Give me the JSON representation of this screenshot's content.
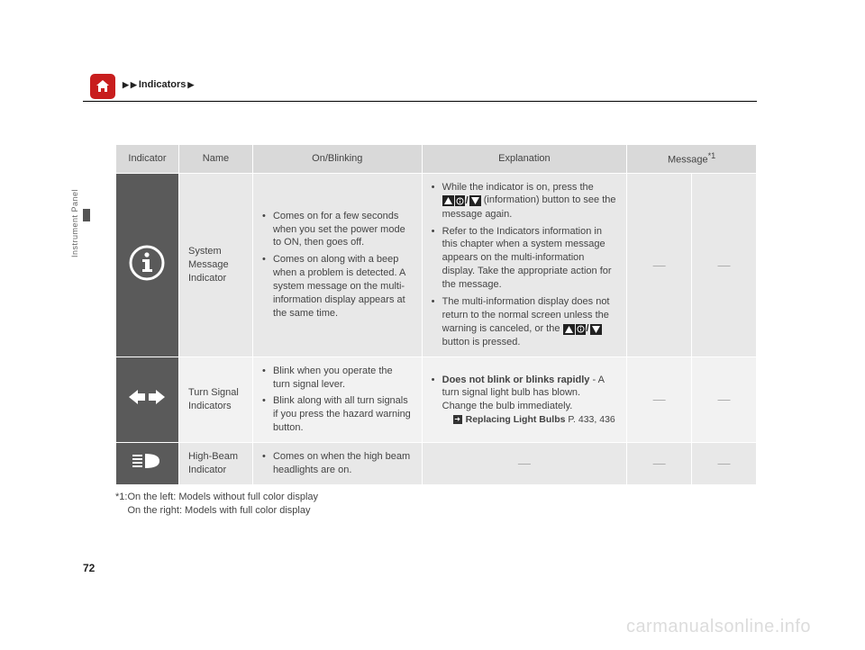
{
  "breadcrumb": {
    "item1": "Indicators"
  },
  "sideLabel": "Instrument Panel",
  "pageNumber": "72",
  "watermark": "carmanualsonline.info",
  "headers": {
    "indicator": "Indicator",
    "name": "Name",
    "on": "On/Blinking",
    "explanation": "Explanation",
    "message": "Message",
    "messageSup": "*1"
  },
  "rows": [
    {
      "name": "System Message Indicator",
      "on": [
        "Comes on for a few seconds when you set the power mode to ON, then goes off.",
        "Comes on along with a beep when a problem is detected. A system message on the multi-information display appears at the same time."
      ],
      "exp": [
        "While the indicator is on, press the __BTN__ (information) button to see the message again.",
        "Refer to the Indicators information in this chapter when a system message appears on the multi-information display. Take the appropriate action for the message.",
        "The multi-information display does not return to the normal screen unless the warning is canceled, or the __BTN__ button is pressed."
      ],
      "msg1": "—",
      "msg2": "—"
    },
    {
      "name": "Turn Signal Indicators",
      "on": [
        "Blink when you operate the turn signal lever.",
        "Blink along with all turn signals if you press the hazard warning button."
      ],
      "expBold": "Does not blink or blinks rapidly",
      "expRest": " - A turn signal light bulb has blown. Change the bulb immediately.",
      "xrefLabel": "Replacing Light Bulbs",
      "xrefPages": "P. 433, 436",
      "msg1": "—",
      "msg2": "—"
    },
    {
      "name": "High-Beam Indicator",
      "on": [
        "Comes on when the high beam headlights are on."
      ],
      "exp": "—",
      "msg1": "—",
      "msg2": "—"
    }
  ],
  "footnote": {
    "prefix": "*1:",
    "line1": "On the left: Models without full color display",
    "line2": "On the right: Models with full color display"
  },
  "colors": {
    "homeBtn": "#c81e1e",
    "headerBg": "#d9d9d9",
    "rowA": "#e8e8e8",
    "rowB": "#f2f2f2",
    "dark": "#5a5a5a"
  }
}
